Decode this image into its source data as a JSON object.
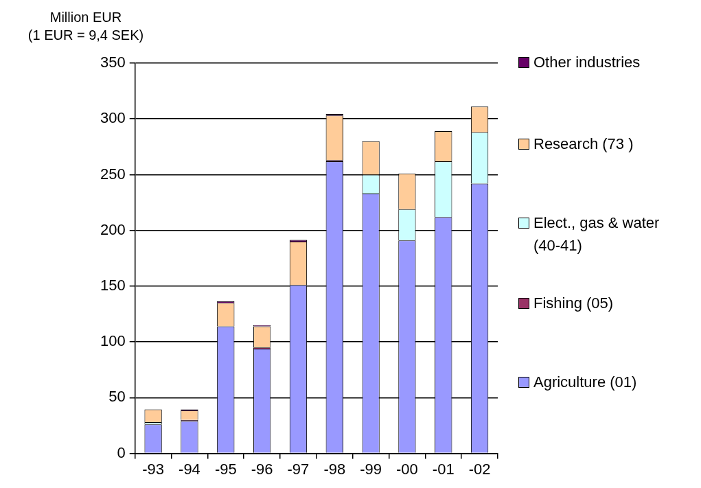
{
  "chart_data": {
    "type": "bar",
    "stacked": true,
    "ylabel": "Million EUR\n(1 EUR = 9,4 SEK)",
    "categories": [
      "-93",
      "-94",
      "-95",
      "-96",
      "-97",
      "-98",
      "-99",
      "-00",
      "-01",
      "-02"
    ],
    "series": [
      {
        "name": "Agriculture (01)",
        "color": "#9999ff",
        "values": [
          26,
          29,
          114,
          94,
          151,
          262,
          233,
          191,
          212,
          242
        ]
      },
      {
        "name": "Fishing (05)",
        "color": "#993366",
        "values": [
          null,
          1,
          null,
          1,
          null,
          1,
          null,
          null,
          null,
          null
        ]
      },
      {
        "name": "Elect., gas & water (40-41)",
        "color": "#ccffff",
        "values": [
          2,
          null,
          null,
          null,
          null,
          null,
          17,
          28,
          50,
          46
        ]
      },
      {
        "name": "Research (73 )",
        "color": "#ffcc99",
        "values": [
          11.5,
          8.5,
          21,
          19,
          39,
          40,
          30,
          32,
          27,
          23
        ]
      },
      {
        "name": "Other industries",
        "color": "#660066",
        "values": [
          null,
          1,
          1.5,
          1,
          1.5,
          1.5,
          null,
          null,
          null,
          null
        ]
      }
    ],
    "ylim": [
      0,
      350
    ],
    "yticks": [
      0,
      50,
      100,
      150,
      200,
      250,
      300,
      350
    ],
    "grid": "y",
    "legend": "right"
  }
}
